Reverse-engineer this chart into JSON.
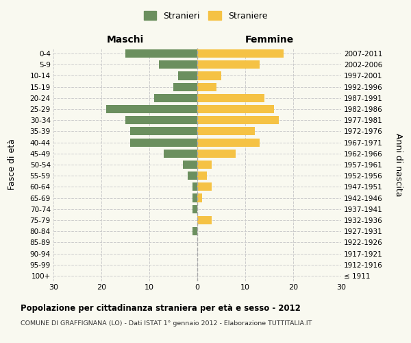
{
  "age_groups": [
    "100+",
    "95-99",
    "90-94",
    "85-89",
    "80-84",
    "75-79",
    "70-74",
    "65-69",
    "60-64",
    "55-59",
    "50-54",
    "45-49",
    "40-44",
    "35-39",
    "30-34",
    "25-29",
    "20-24",
    "15-19",
    "10-14",
    "5-9",
    "0-4"
  ],
  "birth_years": [
    "≤ 1911",
    "1912-1916",
    "1917-1921",
    "1922-1926",
    "1927-1931",
    "1932-1936",
    "1937-1941",
    "1942-1946",
    "1947-1951",
    "1952-1956",
    "1957-1961",
    "1962-1966",
    "1967-1971",
    "1972-1976",
    "1977-1981",
    "1982-1986",
    "1987-1991",
    "1992-1996",
    "1997-2001",
    "2002-2006",
    "2007-2011"
  ],
  "maschi": [
    0,
    0,
    0,
    0,
    1,
    0,
    1,
    1,
    1,
    2,
    3,
    7,
    14,
    14,
    15,
    19,
    9,
    5,
    4,
    8,
    15
  ],
  "femmine": [
    0,
    0,
    0,
    0,
    0,
    3,
    0,
    1,
    3,
    2,
    3,
    8,
    13,
    12,
    17,
    16,
    14,
    4,
    5,
    13,
    18
  ],
  "color_maschi": "#6b8f5e",
  "color_femmine": "#f5c244",
  "title": "Popolazione per cittadinanza straniera per età e sesso - 2012",
  "subtitle": "COMUNE DI GRAFFIGNANA (LO) - Dati ISTAT 1° gennaio 2012 - Elaborazione TUTTITALIA.IT",
  "xlabel_left": "Maschi",
  "xlabel_right": "Femmine",
  "ylabel_left": "Fasce di età",
  "ylabel_right": "Anni di nascita",
  "legend_maschi": "Stranieri",
  "legend_femmine": "Straniere",
  "xlim": 30,
  "background_color": "#f9f9f0",
  "grid_color": "#cccccc"
}
